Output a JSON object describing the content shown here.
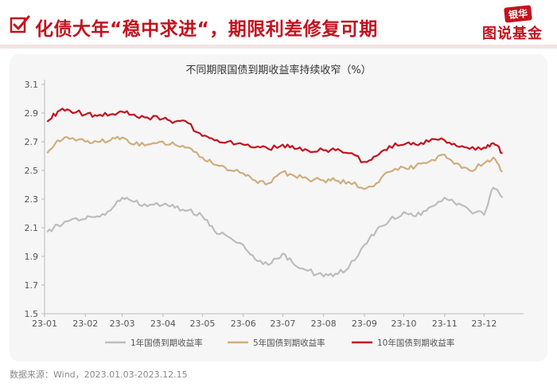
{
  "header": {
    "title": "化债大年“稳中求进“，期限利差修复可期",
    "brand_top": "银华",
    "brand_main": "图说基金"
  },
  "colors": {
    "accent": "#c4121f",
    "series_1y": "#bdbdbd",
    "series_5y": "#cfae7d",
    "series_10y": "#c4121f"
  },
  "footer": {
    "source": "数据来源：Wind，2023.01.03-2023.12.15"
  },
  "chart_data": {
    "type": "line",
    "title": "不同期限国债到期收益率持续收窄（%）",
    "xlabel": "",
    "ylabel": "",
    "ylim": [
      1.5,
      3.1
    ],
    "yticks": [
      1.5,
      1.7,
      1.9,
      2.1,
      2.3,
      2.5,
      2.7,
      2.9,
      3.1
    ],
    "xticks": [
      "23-01",
      "23-02",
      "23-03",
      "23-04",
      "23-05",
      "23-06",
      "23-07",
      "23-08",
      "23-09",
      "23-10",
      "23-11",
      "23-12"
    ],
    "grid": false,
    "legend": "bottom",
    "x": [
      "2023-01-03",
      "2023-01-11",
      "2023-01-20",
      "2023-02-01",
      "2023-02-10",
      "2023-02-20",
      "2023-03-01",
      "2023-03-10",
      "2023-03-20",
      "2023-04-01",
      "2023-04-10",
      "2023-04-20",
      "2023-05-01",
      "2023-05-10",
      "2023-05-20",
      "2023-06-01",
      "2023-06-10",
      "2023-06-20",
      "2023-07-01",
      "2023-07-10",
      "2023-07-20",
      "2023-08-01",
      "2023-08-10",
      "2023-08-20",
      "2023-09-01",
      "2023-09-10",
      "2023-09-20",
      "2023-10-01",
      "2023-10-10",
      "2023-10-20",
      "2023-11-01",
      "2023-11-10",
      "2023-11-20",
      "2023-12-01",
      "2023-12-08",
      "2023-12-15"
    ],
    "series": [
      {
        "name": "1年国债到期收益率",
        "values": [
          2.07,
          2.12,
          2.15,
          2.16,
          2.18,
          2.22,
          2.31,
          2.28,
          2.25,
          2.26,
          2.24,
          2.22,
          2.18,
          2.08,
          2.04,
          1.98,
          1.88,
          1.84,
          1.92,
          1.84,
          1.8,
          1.76,
          1.78,
          1.82,
          1.98,
          2.08,
          2.15,
          2.21,
          2.18,
          2.24,
          2.31,
          2.26,
          2.22,
          2.19,
          2.38,
          2.31
        ]
      },
      {
        "name": "5年国债到期收益率",
        "values": [
          2.62,
          2.71,
          2.72,
          2.7,
          2.7,
          2.71,
          2.73,
          2.68,
          2.68,
          2.7,
          2.68,
          2.66,
          2.59,
          2.54,
          2.5,
          2.48,
          2.43,
          2.41,
          2.49,
          2.46,
          2.44,
          2.43,
          2.43,
          2.42,
          2.37,
          2.41,
          2.49,
          2.52,
          2.53,
          2.56,
          2.61,
          2.55,
          2.5,
          2.55,
          2.59,
          2.49
        ]
      },
      {
        "name": "10年国债到期收益率",
        "values": [
          2.84,
          2.91,
          2.92,
          2.89,
          2.88,
          2.89,
          2.91,
          2.89,
          2.87,
          2.86,
          2.84,
          2.83,
          2.74,
          2.71,
          2.7,
          2.68,
          2.66,
          2.65,
          2.68,
          2.65,
          2.64,
          2.64,
          2.64,
          2.62,
          2.56,
          2.6,
          2.67,
          2.68,
          2.68,
          2.7,
          2.71,
          2.67,
          2.65,
          2.66,
          2.69,
          2.62
        ]
      }
    ]
  }
}
